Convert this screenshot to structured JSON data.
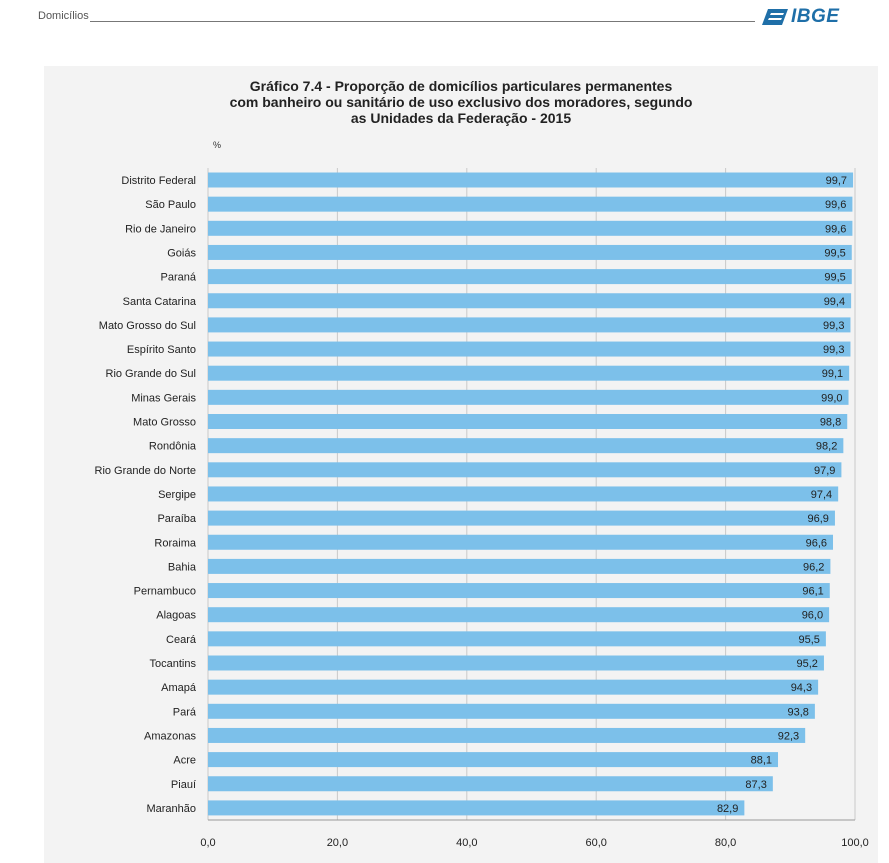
{
  "header": {
    "section": "Domicílios",
    "logo_text": "IBGE"
  },
  "chart_title_lines": [
    "Gráfico 7.4 - Proporção de domicílios particulares permanentes",
    "com banheiro ou sanitário de uso exclusivo dos moradores, segundo",
    "as Unidades da Federação - 2015"
  ],
  "colors": {
    "bar": "#7cc0ea",
    "panel": "#f3f3f3",
    "grid": "#c9c9c9",
    "logo": "#1f6fa8"
  },
  "chart_data": {
    "type": "bar",
    "orientation": "horizontal",
    "title": "Gráfico 7.4 - Proporção de domicílios particulares permanentes com banheiro ou sanitário de uso exclusivo dos moradores, segundo as Unidades da Federação - 2015",
    "unit": "%",
    "xlim": [
      0,
      100
    ],
    "xticks": [
      0,
      20,
      40,
      60,
      80,
      100
    ],
    "xtick_labels": [
      "0,0",
      "20,0",
      "40,0",
      "60,0",
      "80,0",
      "100,0"
    ],
    "grid": true,
    "categories": [
      "Distrito Federal",
      "São Paulo",
      "Rio de Janeiro",
      "Goiás",
      "Paraná",
      "Santa Catarina",
      "Mato Grosso do Sul",
      "Espírito Santo",
      "Rio Grande do Sul",
      "Minas Gerais",
      "Mato Grosso",
      "Rondônia",
      "Rio Grande do Norte",
      "Sergipe",
      "Paraíba",
      "Roraima",
      "Bahia",
      "Pernambuco",
      "Alagoas",
      "Ceará",
      "Tocantins",
      "Amapá",
      "Pará",
      "Amazonas",
      "Acre",
      "Piauí",
      "Maranhão"
    ],
    "values": [
      99.7,
      99.6,
      99.6,
      99.5,
      99.5,
      99.4,
      99.3,
      99.3,
      99.1,
      99.0,
      98.8,
      98.2,
      97.9,
      97.4,
      96.9,
      96.6,
      96.2,
      96.1,
      96.0,
      95.5,
      95.2,
      94.3,
      93.8,
      92.3,
      88.1,
      87.3,
      82.9
    ],
    "value_labels": [
      "99,7",
      "99,6",
      "99,6",
      "99,5",
      "99,5",
      "99,4",
      "99,3",
      "99,3",
      "99,1",
      "99,0",
      "98,8",
      "98,2",
      "97,9",
      "97,4",
      "96,9",
      "96,6",
      "96,2",
      "96,1",
      "96,0",
      "95,5",
      "95,2",
      "94,3",
      "93,8",
      "92,3",
      "88,1",
      "87,3",
      "82,9"
    ]
  }
}
